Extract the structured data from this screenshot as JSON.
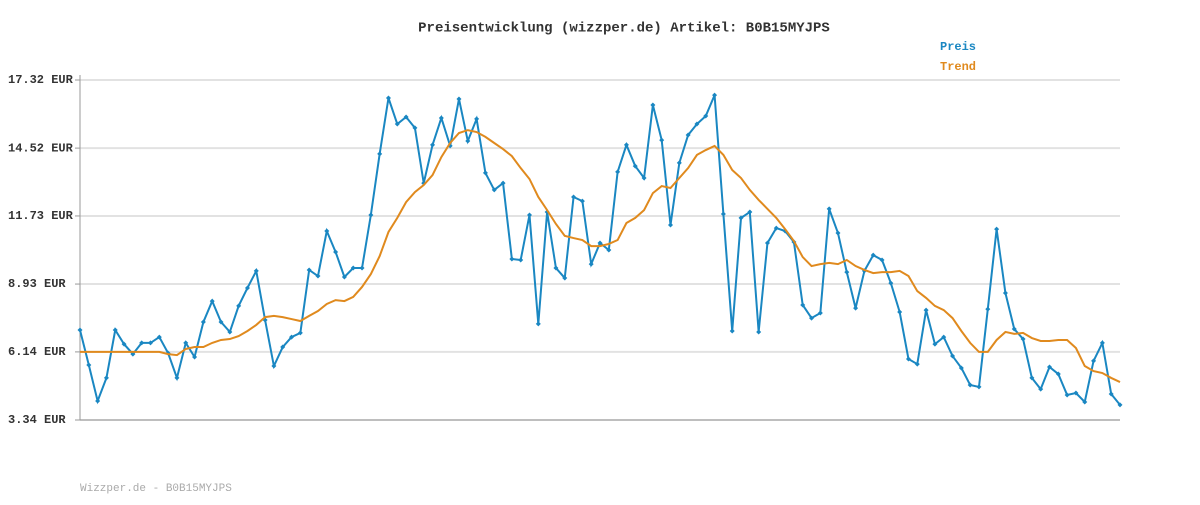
{
  "chart_data": {
    "type": "line",
    "title": "Preisentwicklung (wizzper.de) Artikel: B0B15MYJPS",
    "footer": "Wizzper.de - B0B15MYJPS",
    "ylim": [
      3.34,
      17.32
    ],
    "yticks": [
      {
        "value": 3.34,
        "label": "3.34 EUR"
      },
      {
        "value": 6.14,
        "label": "6.14 EUR"
      },
      {
        "value": 8.93,
        "label": "8.93 EUR"
      },
      {
        "value": 11.73,
        "label": "11.73 EUR"
      },
      {
        "value": 14.52,
        "label": "14.52 EUR"
      },
      {
        "value": 17.32,
        "label": "17.32 EUR"
      }
    ],
    "grid": true,
    "legend": "top-right",
    "series": [
      {
        "name": "Preis",
        "color": "#1a87c2",
        "markers": true,
        "values": [
          7.04,
          5.6,
          4.12,
          5.07,
          7.04,
          6.46,
          6.05,
          6.51,
          6.51,
          6.75,
          6.09,
          5.07,
          6.51,
          5.93,
          7.37,
          8.23,
          7.37,
          6.96,
          8.03,
          8.77,
          9.47,
          7.45,
          5.56,
          6.34,
          6.75,
          6.92,
          9.51,
          9.26,
          11.11,
          10.25,
          9.22,
          9.59,
          9.59,
          11.77,
          14.28,
          16.58,
          15.51,
          15.8,
          15.35,
          13.08,
          14.65,
          15.76,
          14.61,
          16.54,
          14.81,
          15.72,
          13.5,
          12.8,
          13.08,
          9.96,
          9.92,
          11.77,
          7.29,
          11.89,
          9.59,
          9.18,
          12.51,
          12.34,
          9.75,
          10.62,
          10.33,
          13.54,
          14.65,
          13.78,
          13.29,
          16.29,
          14.85,
          11.36,
          13.91,
          15.06,
          15.51,
          15.84,
          16.7,
          11.81,
          7.0,
          11.65,
          11.89,
          6.96,
          10.62,
          11.23,
          11.11,
          10.66,
          8.07,
          7.53,
          7.74,
          12.02,
          11.03,
          9.42,
          7.94,
          9.47,
          10.12,
          9.92,
          8.97,
          7.78,
          5.85,
          5.64,
          7.86,
          6.46,
          6.75,
          5.97,
          5.48,
          4.78,
          4.7,
          7.9,
          11.19,
          8.56,
          7.08,
          6.67,
          5.07,
          4.61,
          5.52,
          5.23,
          4.37,
          4.45,
          4.08,
          5.77,
          6.51,
          4.41,
          3.96
        ]
      },
      {
        "name": "Trend",
        "color": "#e08a1e",
        "markers": false,
        "values": [
          6.14,
          6.14,
          6.14,
          6.14,
          6.14,
          6.14,
          6.14,
          6.14,
          6.14,
          6.14,
          6.05,
          6.01,
          6.26,
          6.34,
          6.34,
          6.51,
          6.63,
          6.67,
          6.79,
          7.0,
          7.25,
          7.57,
          7.62,
          7.57,
          7.49,
          7.41,
          7.62,
          7.82,
          8.11,
          8.27,
          8.23,
          8.4,
          8.81,
          9.34,
          10.08,
          11.07,
          11.65,
          12.3,
          12.71,
          13.0,
          13.41,
          14.15,
          14.73,
          15.14,
          15.26,
          15.18,
          14.98,
          14.73,
          14.48,
          14.19,
          13.7,
          13.25,
          12.51,
          11.97,
          11.4,
          10.91,
          10.82,
          10.74,
          10.49,
          10.49,
          10.58,
          10.74,
          11.44,
          11.65,
          11.97,
          12.67,
          12.96,
          12.88,
          13.29,
          13.7,
          14.24,
          14.44,
          14.61,
          14.24,
          13.62,
          13.29,
          12.8,
          12.39,
          12.02,
          11.65,
          11.19,
          10.7,
          10.04,
          9.67,
          9.75,
          9.8,
          9.75,
          9.92,
          9.67,
          9.51,
          9.38,
          9.42,
          9.42,
          9.47,
          9.26,
          8.64,
          8.36,
          8.03,
          7.86,
          7.53,
          7.0,
          6.51,
          6.14,
          6.14,
          6.63,
          6.96,
          6.88,
          6.92,
          6.71,
          6.59,
          6.59,
          6.63,
          6.63,
          6.3,
          5.56,
          5.35,
          5.27,
          5.07,
          4.9
        ]
      }
    ]
  }
}
